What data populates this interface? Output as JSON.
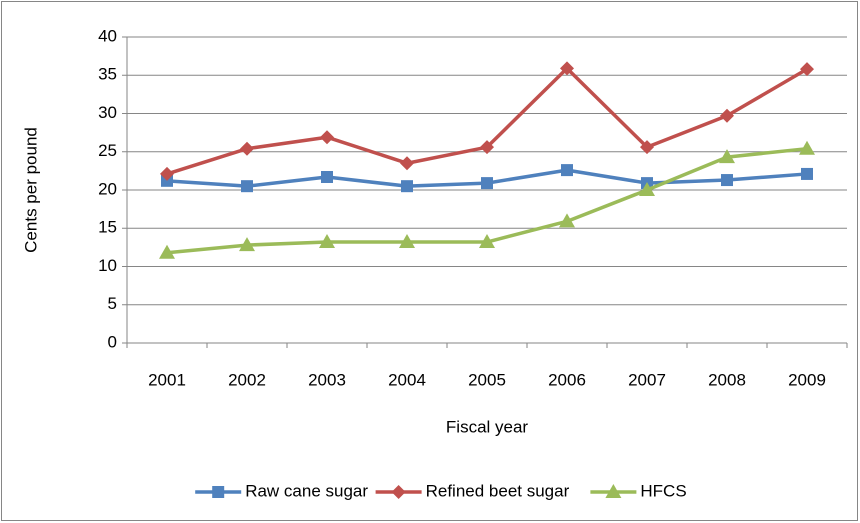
{
  "chart_data": {
    "type": "line",
    "x_label": "Fiscal year",
    "y_label": "Cents per pound",
    "categories": [
      "2001",
      "2002",
      "2003",
      "2004",
      "2005",
      "2006",
      "2007",
      "2008",
      "2009"
    ],
    "series": [
      {
        "name": "Raw cane sugar",
        "color": "#4f81bd",
        "marker": "square",
        "values": [
          21.2,
          20.5,
          21.7,
          20.5,
          20.9,
          22.6,
          20.9,
          21.3,
          22.1
        ]
      },
      {
        "name": "Refined beet sugar",
        "color": "#c0504d",
        "marker": "diamond",
        "values": [
          22.1,
          25.4,
          26.9,
          23.5,
          25.6,
          35.9,
          25.6,
          29.7,
          35.8
        ]
      },
      {
        "name": "HFCS",
        "color": "#9bbb59",
        "marker": "triangle",
        "values": [
          11.8,
          12.8,
          13.2,
          13.2,
          13.2,
          15.9,
          20.0,
          24.3,
          25.4
        ]
      }
    ],
    "ylim": [
      0,
      40
    ],
    "yticks": [
      0,
      5,
      10,
      15,
      20,
      25,
      30,
      35,
      40
    ],
    "grid": true,
    "legend": "bottom"
  }
}
